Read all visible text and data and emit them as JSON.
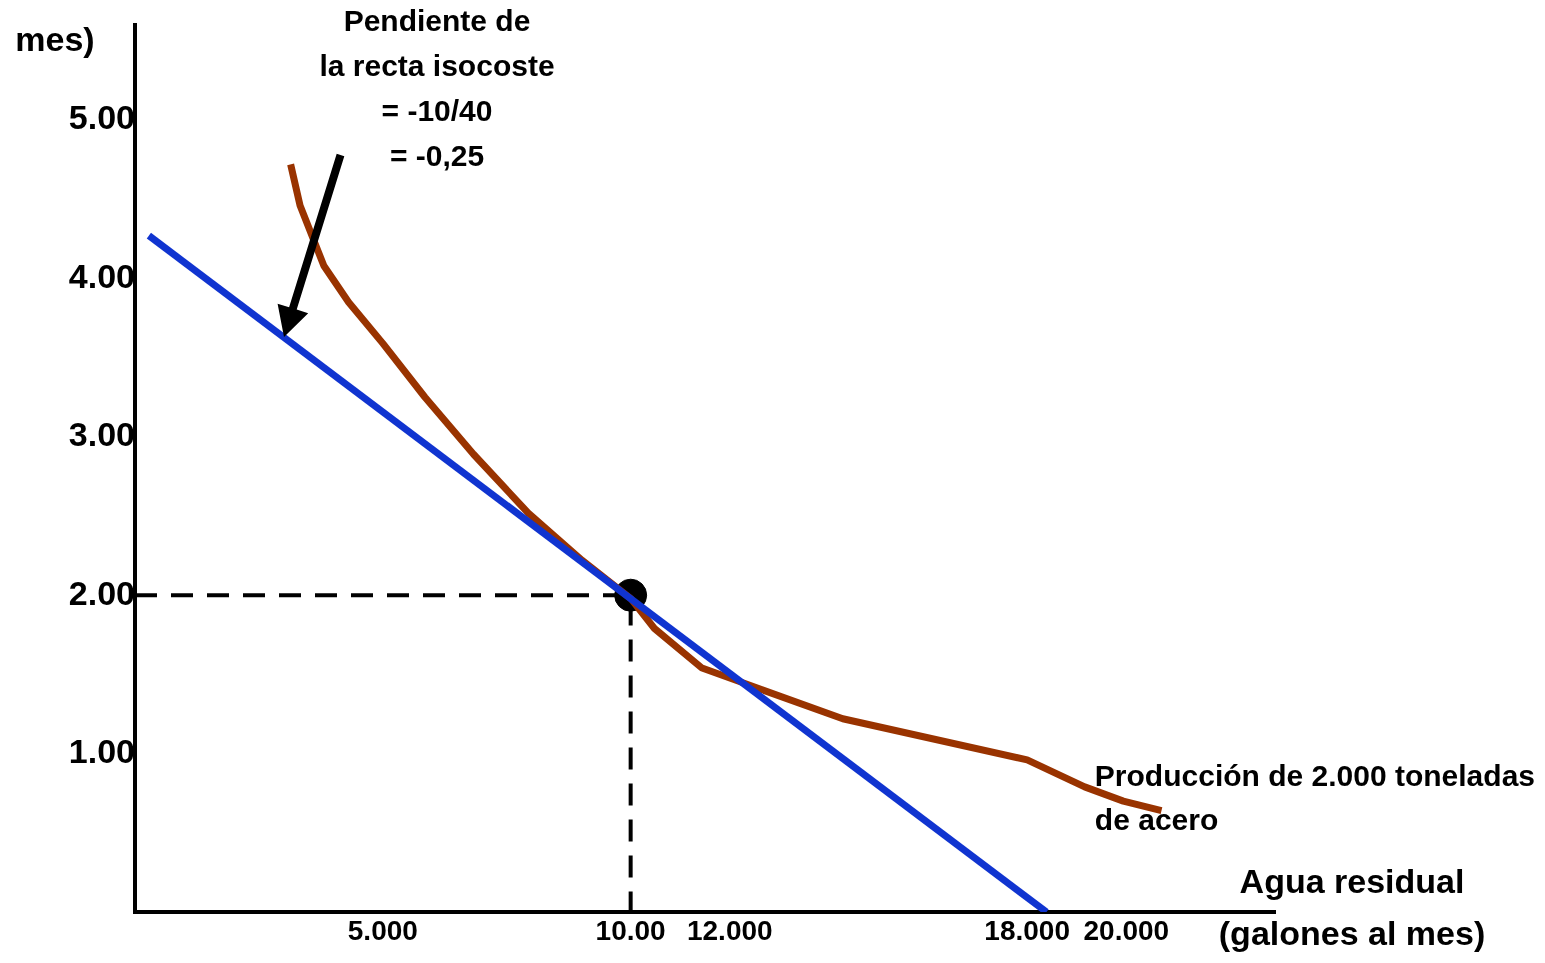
{
  "chart_data": {
    "type": "line",
    "ylabel": "mes)",
    "xlabel": "Agua residual\n(galones al mes)",
    "xlim": [
      0,
      23
    ],
    "ylim": [
      0,
      5.6
    ],
    "xticks": [
      {
        "value": 5,
        "label": "5.000"
      },
      {
        "value": 10,
        "label": "10.00"
      },
      {
        "value": 12,
        "label": "12.000"
      },
      {
        "value": 18,
        "label": "18.000"
      },
      {
        "value": 20,
        "label": "20.000"
      }
    ],
    "yticks": [
      {
        "value": 1,
        "label": "1.00"
      },
      {
        "value": 2,
        "label": "2.00"
      },
      {
        "value": 3,
        "label": "3.00"
      },
      {
        "value": 4,
        "label": "4.00"
      },
      {
        "value": 5,
        "label": "5.00"
      }
    ],
    "grid": false,
    "legend": false,
    "marker": "none",
    "series": [
      {
        "color": "#1034d0",
        "x": [
          0.28,
          18.39
        ],
        "values": [
          4.27,
          0
        ]
      },
      {
        "color": "#993300",
        "x": [
          3.14,
          3.33,
          3.81,
          4.31,
          5,
          5.85,
          6.83,
          7.93,
          9.02,
          10,
          10.48,
          11.44,
          14.28,
          18,
          19.16,
          19.94,
          20.71
        ],
        "values": [
          4.72,
          4.46,
          4.08,
          3.85,
          3.59,
          3.25,
          2.89,
          2.52,
          2.22,
          1.98,
          1.79,
          1.54,
          1.22,
          0.96,
          0.79,
          0.7,
          0.64
        ]
      },
      {
        "color": "#000000",
        "line_style": "dashed",
        "x": [
          0,
          10,
          10
        ],
        "values": [
          2,
          2,
          0
        ]
      },
      {
        "type": "scatter",
        "color": "#000000",
        "marker": "circle",
        "x": [
          10
        ],
        "values": [
          2
        ]
      }
    ],
    "annotations": [
      "Pendiente de\nla recta isocoste\n= -10/40\n= -0,25",
      "Producción de 2.000 toneladas\nde acero"
    ]
  }
}
